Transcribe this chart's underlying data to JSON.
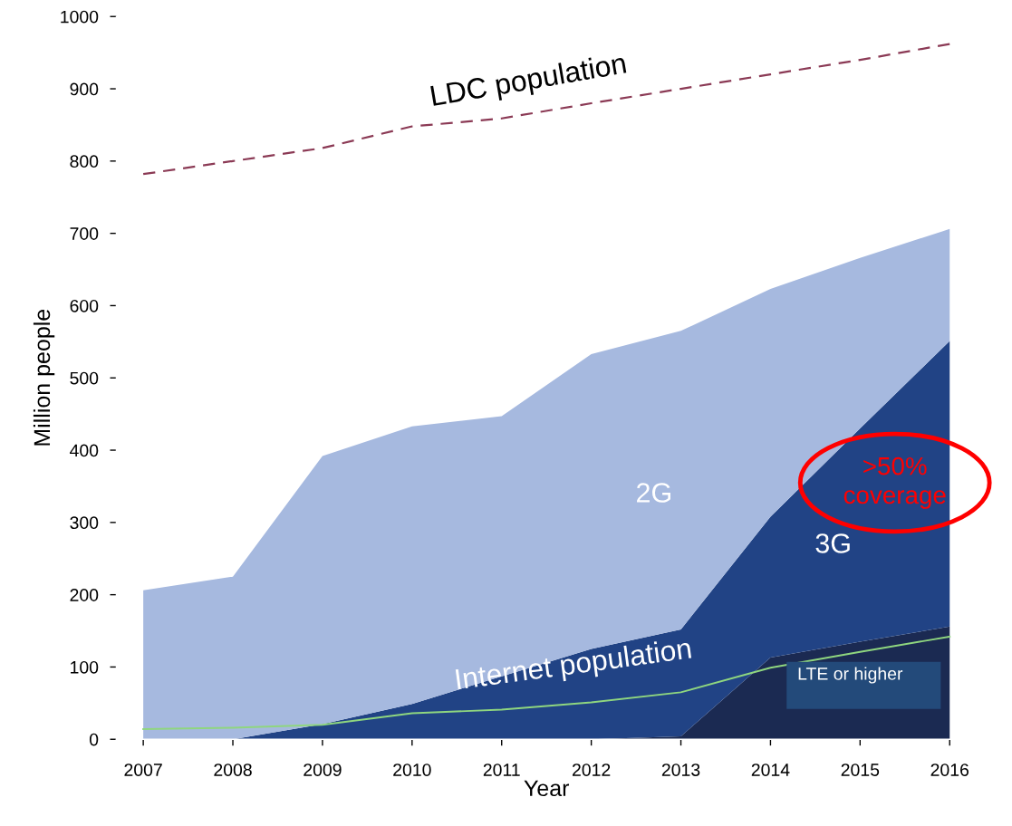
{
  "chart_data": {
    "type": "area",
    "xlabel": "Year",
    "ylabel": "Million people",
    "categories": [
      "2007",
      "2008",
      "2009",
      "2010",
      "2011",
      "2012",
      "2013",
      "2014",
      "2015",
      "2016"
    ],
    "stacked": true,
    "series": [
      {
        "name": "LTE or higher",
        "color": "#1b2a52",
        "values": [
          0,
          0,
          0,
          0,
          0,
          0,
          4,
          113,
          135,
          156
        ]
      },
      {
        "name": "3G",
        "color": "#214385",
        "values": [
          0,
          0,
          21,
          49,
          87,
          125,
          148,
          195,
          295,
          395
        ]
      },
      {
        "name": "2G",
        "color": "#a6b9df",
        "values": [
          206,
          225,
          371,
          384,
          360,
          408,
          413,
          315,
          236,
          155
        ]
      },
      {
        "name": "Internet population",
        "type": "line",
        "color": "#8fd67f",
        "line_style": "solid",
        "values": [
          14,
          16,
          20,
          36,
          41,
          51,
          65,
          99,
          121,
          142
        ]
      },
      {
        "name": "LDC population",
        "type": "line",
        "color": "#8b3a55",
        "line_style": "dashed",
        "values": [
          782,
          800,
          818,
          848,
          859,
          880,
          900,
          920,
          940,
          962
        ]
      }
    ],
    "ylim": [
      0,
      1000
    ],
    "yticks": [
      0,
      100,
      200,
      300,
      400,
      500,
      600,
      700,
      800,
      900,
      1000
    ],
    "grid": false,
    "legend": false,
    "marker": "none",
    "annotations": [
      ">50% coverage"
    ]
  }
}
